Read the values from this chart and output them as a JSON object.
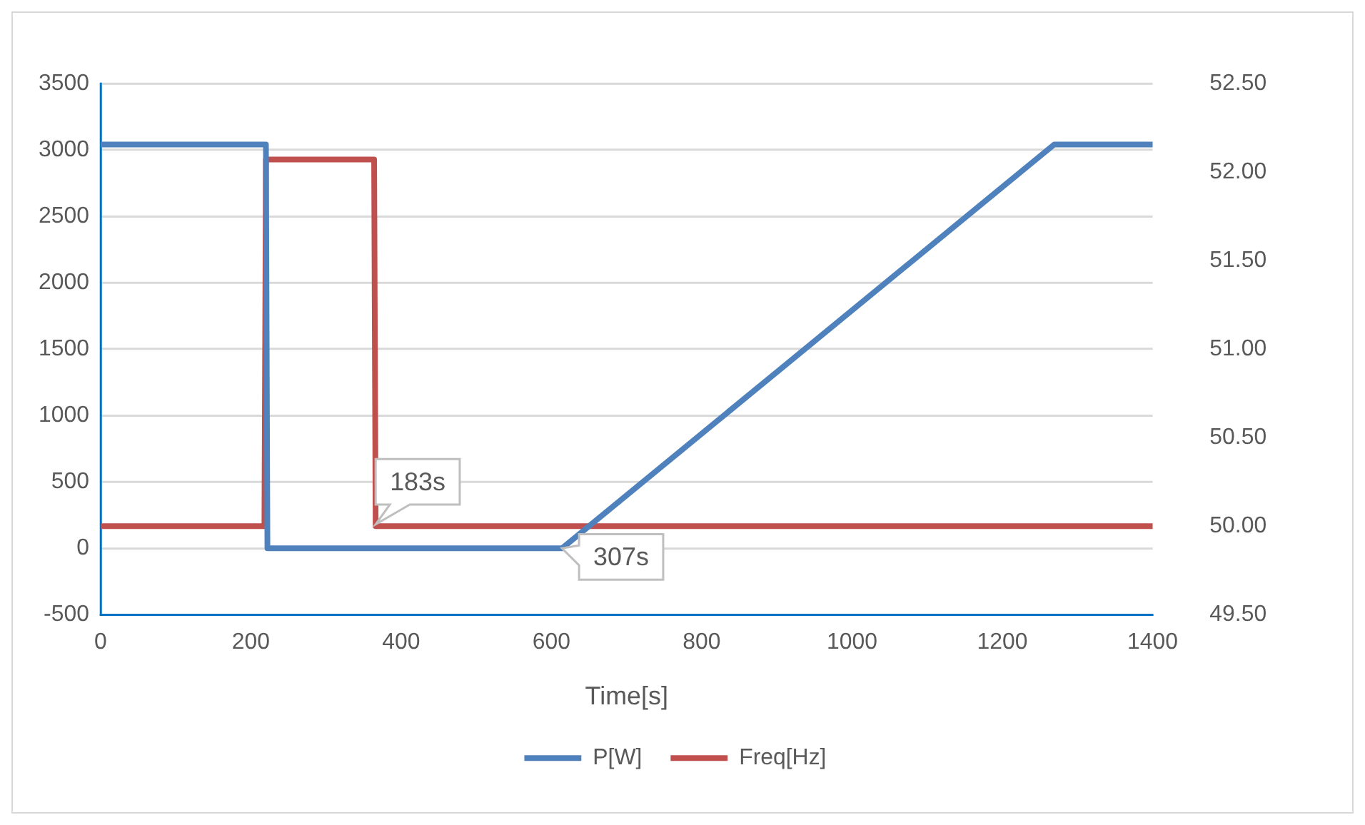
{
  "chart_data": {
    "type": "line",
    "xlabel": "Time[s]",
    "xlim": [
      0,
      1400
    ],
    "xticks": [
      0,
      200,
      400,
      600,
      800,
      1000,
      1200,
      1400
    ],
    "ylim": [
      -500,
      3500
    ],
    "yticks": [
      -500,
      0,
      500,
      1000,
      1500,
      2000,
      2500,
      3000,
      3500
    ],
    "y2lim": [
      49.5,
      52.5
    ],
    "y2ticks": [
      {
        "value": 49.5,
        "label": "49.50"
      },
      {
        "value": 50,
        "label": "50.00"
      },
      {
        "value": 50.5,
        "label": "50.50"
      },
      {
        "value": 51,
        "label": "51.00"
      },
      {
        "value": 51.5,
        "label": "51.50"
      },
      {
        "value": 52,
        "label": "52.00"
      },
      {
        "value": 52.5,
        "label": "52.50"
      }
    ],
    "series": [
      {
        "name": "P[W]",
        "color": "#4f81bd",
        "x": [
          0,
          220,
          222,
          614,
          1269,
          1400
        ],
        "values": [
          3040,
          3040,
          0,
          0,
          3040,
          3040
        ]
      },
      {
        "name": "Freq[Hz]",
        "color": "#c0504d",
        "axis": "y2",
        "x": [
          0,
          218,
          220,
          364,
          366,
          1400
        ],
        "values": [
          50.0,
          50.0,
          52.07,
          52.07,
          50.0,
          50.0
        ]
      }
    ],
    "annotations": [
      {
        "text": "183s",
        "x": 366,
        "y": 180
      },
      {
        "text": "307s",
        "x": 614,
        "y": 0
      }
    ],
    "grid": "y",
    "legend": "bottom",
    "marker": "none",
    "line_style": "solid"
  }
}
